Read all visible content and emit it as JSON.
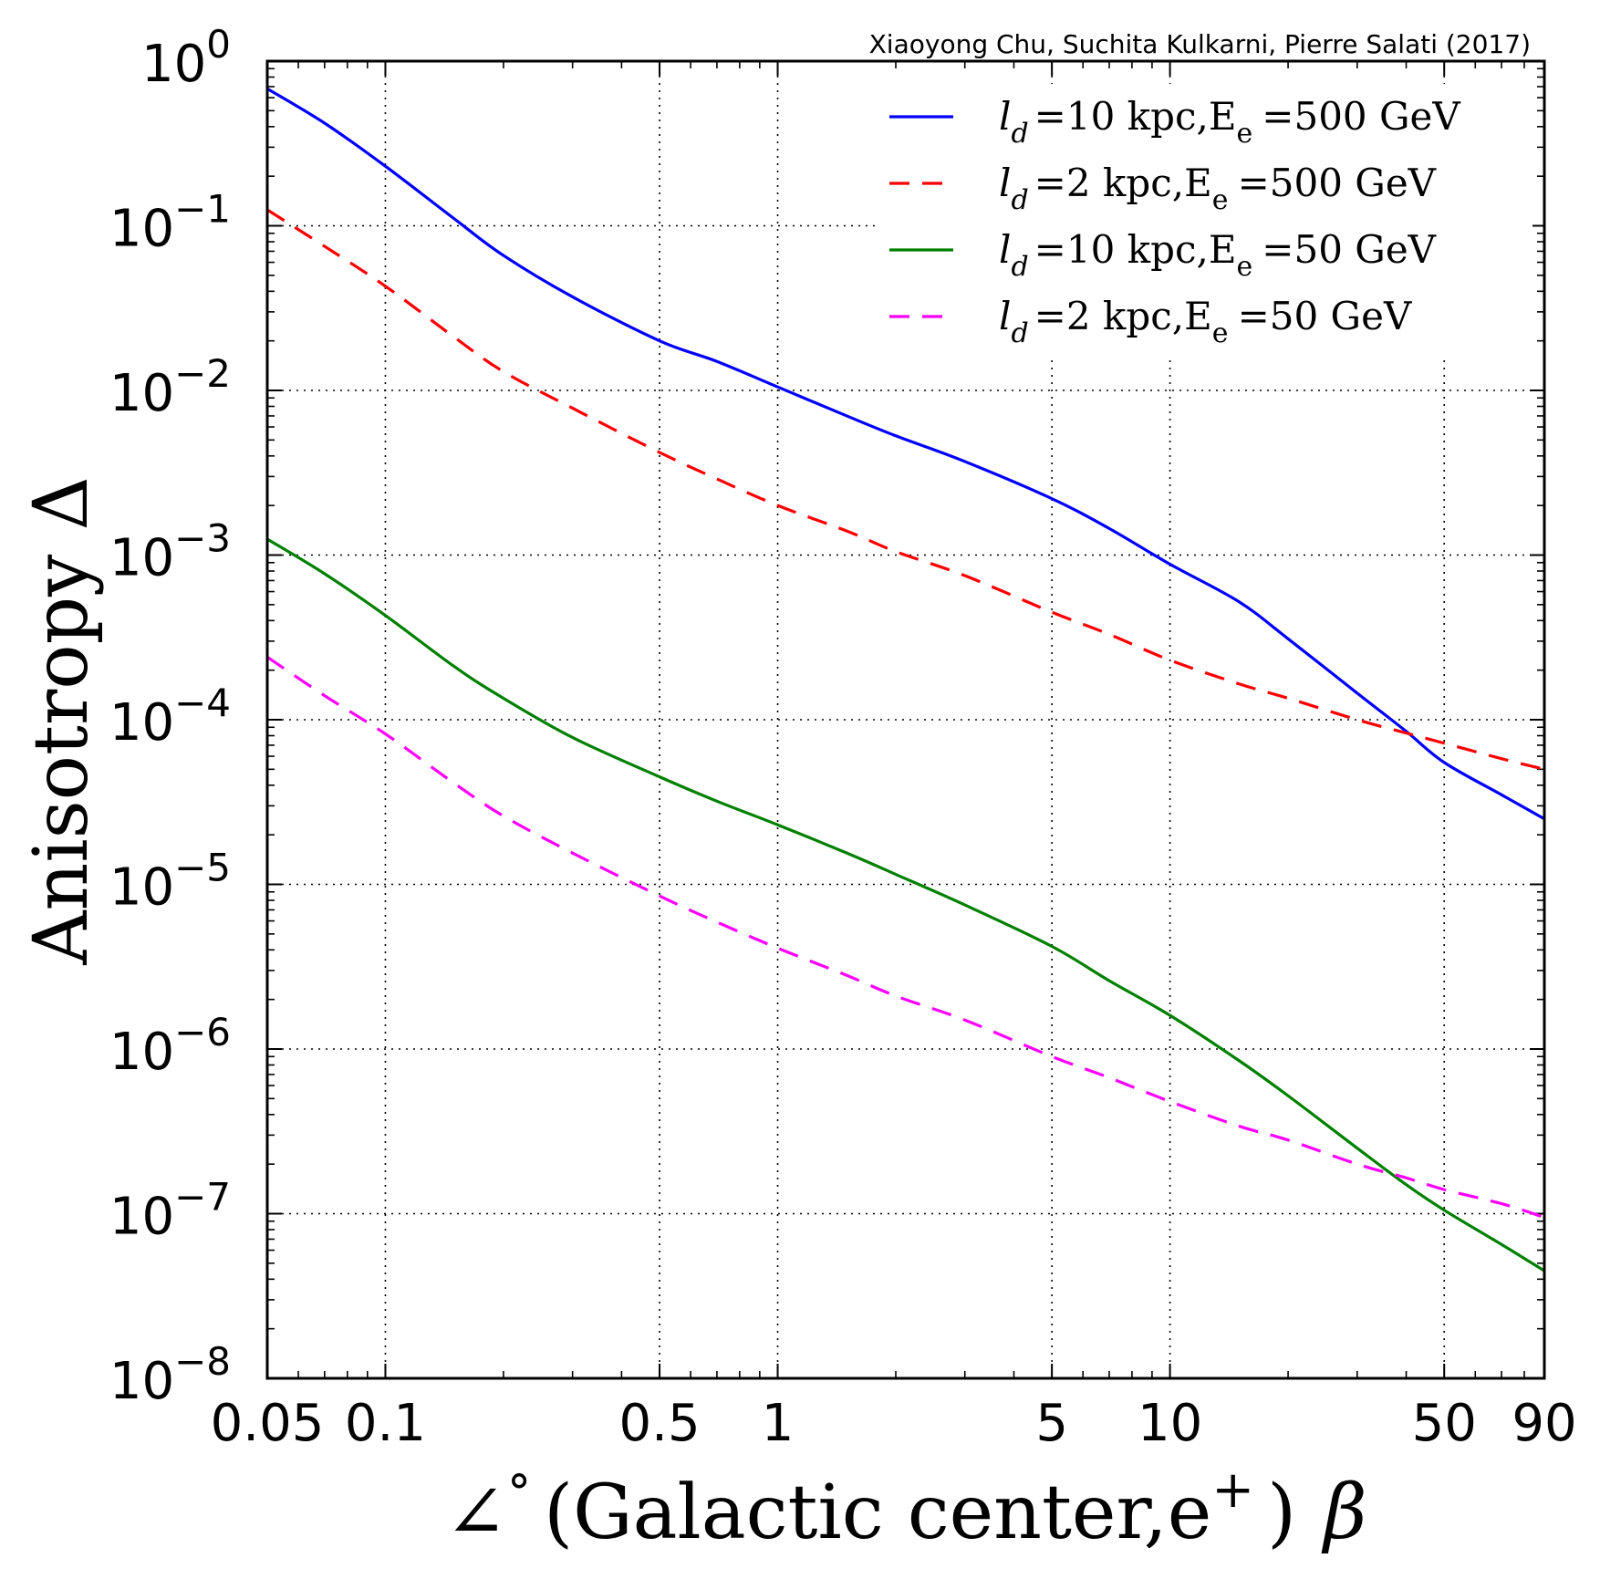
{
  "chart_data": {
    "type": "line",
    "credit": "Xiaoyong Chu, Suchita Kulkarni, Pierre Salati (2017)",
    "xlabel": {
      "prefix": "∠",
      "degree": "°",
      "main": "(Galactic center,e",
      "sup": "+",
      "close": ")",
      "beta": "β"
    },
    "ylabel": "Anisotropy Δ",
    "xscale": "log",
    "yscale": "log",
    "xlim": [
      0.05,
      90
    ],
    "ylim": [
      1e-08,
      1
    ],
    "xticks": [
      {
        "value": 0.05,
        "label": "0.05"
      },
      {
        "value": 0.1,
        "label": "0.1"
      },
      {
        "value": 0.5,
        "label": "0.5"
      },
      {
        "value": 1,
        "label": "1"
      },
      {
        "value": 5,
        "label": "5"
      },
      {
        "value": 10,
        "label": "10"
      },
      {
        "value": 50,
        "label": "50"
      },
      {
        "value": 90,
        "label": "90"
      }
    ],
    "yticks": [
      {
        "value": 1.0,
        "base": "10",
        "exp": "0"
      },
      {
        "value": 0.1,
        "base": "10",
        "exp": "−1"
      },
      {
        "value": 0.01,
        "base": "10",
        "exp": "−2"
      },
      {
        "value": 0.001,
        "base": "10",
        "exp": "−3"
      },
      {
        "value": 0.0001,
        "base": "10",
        "exp": "−4"
      },
      {
        "value": 1e-05,
        "base": "10",
        "exp": "−5"
      },
      {
        "value": 1e-06,
        "base": "10",
        "exp": "−6"
      },
      {
        "value": 1e-07,
        "base": "10",
        "exp": "−7"
      },
      {
        "value": 1e-08,
        "base": "10",
        "exp": "−8"
      }
    ],
    "grid": true,
    "legend_position": "top-right",
    "series": [
      {
        "name": "blue-solid",
        "legend": {
          "l": "l",
          "d": "d",
          "mid": "=10 kpc,E",
          "e": "e",
          "tail": "=500 GeV"
        },
        "color": "#0000ff",
        "style": "solid",
        "x": [
          0.05,
          0.07,
          0.1,
          0.15,
          0.2,
          0.3,
          0.5,
          0.7,
          1,
          1.5,
          2,
          3,
          5,
          7,
          10,
          15,
          20,
          30,
          40,
          50,
          70,
          90
        ],
        "y": [
          0.68,
          0.42,
          0.23,
          0.11,
          0.066,
          0.037,
          0.02,
          0.015,
          0.0105,
          0.007,
          0.0053,
          0.0037,
          0.0022,
          0.00145,
          0.00088,
          0.00052,
          0.00031,
          0.000145,
          8.5e-05,
          5.5e-05,
          3.5e-05,
          2.5e-05
        ]
      },
      {
        "name": "red-dashed",
        "legend": {
          "l": "l",
          "d": "d",
          "mid": "=2 kpc,E",
          "e": "e",
          "tail": "=500 GeV"
        },
        "color": "#ff0000",
        "style": "dashed",
        "x": [
          0.05,
          0.07,
          0.1,
          0.15,
          0.2,
          0.3,
          0.5,
          0.7,
          1,
          1.5,
          2,
          3,
          5,
          7,
          10,
          15,
          20,
          30,
          40,
          50,
          70,
          90
        ],
        "y": [
          0.125,
          0.075,
          0.043,
          0.021,
          0.013,
          0.0078,
          0.0042,
          0.0029,
          0.002,
          0.0014,
          0.00105,
          0.00075,
          0.00045,
          0.00033,
          0.00023,
          0.000165,
          0.000135,
          0.0001,
          8.3e-05,
          7.2e-05,
          5.8e-05,
          5e-05
        ]
      },
      {
        "name": "green-solid",
        "legend": {
          "l": "l",
          "d": "d",
          "mid": "=10 kpc,E",
          "e": "e",
          "tail": "=50 GeV"
        },
        "color": "#008000",
        "style": "solid",
        "x": [
          0.05,
          0.07,
          0.1,
          0.15,
          0.2,
          0.3,
          0.5,
          0.7,
          1,
          1.5,
          2,
          3,
          5,
          7,
          10,
          15,
          20,
          30,
          40,
          50,
          70,
          90
        ],
        "y": [
          0.00125,
          0.00077,
          0.00043,
          0.00021,
          0.000135,
          7.8e-05,
          4.5e-05,
          3.2e-05,
          2.3e-05,
          1.55e-05,
          1.15e-05,
          7.5e-06,
          4.2e-06,
          2.6e-06,
          1.6e-06,
          8.5e-07,
          5.2e-07,
          2.5e-07,
          1.5e-07,
          1.05e-07,
          6.5e-08,
          4.5e-08
        ]
      },
      {
        "name": "magenta-dashed",
        "legend": {
          "l": "l",
          "d": "d",
          "mid": "=2 kpc,E",
          "e": "e",
          "tail": "=50 GeV"
        },
        "color": "#ff00ff",
        "style": "dashed",
        "x": [
          0.05,
          0.07,
          0.1,
          0.15,
          0.2,
          0.3,
          0.5,
          0.7,
          1,
          1.5,
          2,
          3,
          5,
          7,
          10,
          15,
          20,
          30,
          40,
          50,
          70,
          90
        ],
        "y": [
          0.00024,
          0.00014,
          8.2e-05,
          4.1e-05,
          2.6e-05,
          1.55e-05,
          8.5e-06,
          5.9e-06,
          4.1e-06,
          2.8e-06,
          2.1e-06,
          1.5e-06,
          9e-07,
          6.7e-07,
          4.8e-07,
          3.4e-07,
          2.8e-07,
          2e-07,
          1.65e-07,
          1.4e-07,
          1.15e-07,
          9.5e-08
        ]
      }
    ]
  }
}
